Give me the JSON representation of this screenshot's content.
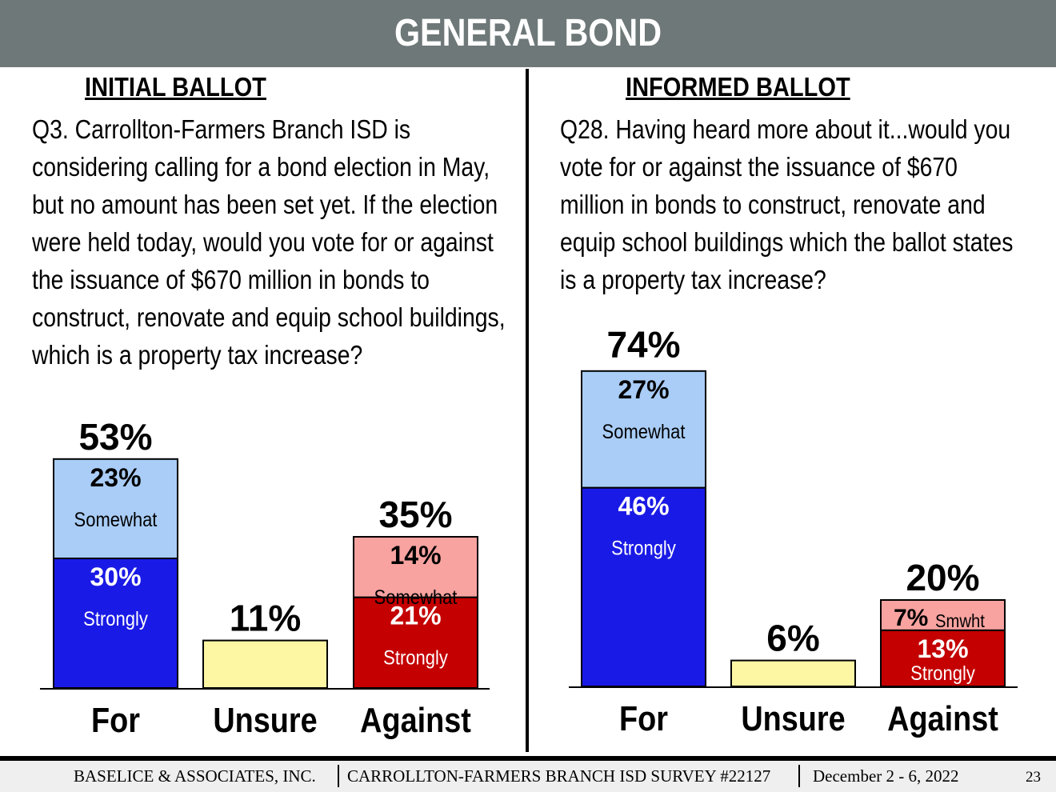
{
  "header": {
    "title": "GENERAL BOND"
  },
  "panels": [
    {
      "title": "INITIAL BALLOT",
      "question": "Q3. Carrollton-Farmers Branch ISD is considering calling for a bond election in May, but no amount has been set yet. If the election were held today, would you vote for or against the issuance of $670 million in bonds to construct, renovate and equip school buildings, which is a property tax increase?"
    },
    {
      "title": "INFORMED BALLOT",
      "question": "Q28. Having heard more about it...would you vote for or against the issuance of $670 million in bonds to construct, renovate and equip school buildings which the ballot states is a property tax increase?"
    }
  ],
  "chart_data": [
    {
      "type": "bar",
      "stacked": true,
      "categories": [
        "For",
        "Unsure",
        "Against"
      ],
      "totals": [
        "53%",
        "11%",
        "35%"
      ],
      "total_values": [
        53,
        11,
        35
      ],
      "segments": [
        {
          "category": "For",
          "label": "Strongly",
          "value": 30,
          "value_label": "30%",
          "color": "#1a1ae6",
          "text_color": "#ffffff"
        },
        {
          "category": "For",
          "label": "Somewhat",
          "value": 23,
          "value_label": "23%",
          "color": "#a9cdf7",
          "text_color": "#000000"
        },
        {
          "category": "Unsure",
          "label": "",
          "value": 11,
          "value_label": "",
          "color": "#fdf7a4",
          "text_color": "#000000"
        },
        {
          "category": "Against",
          "label": "Strongly",
          "value": 21,
          "value_label": "21%",
          "color": "#c40000",
          "text_color": "#ffffff"
        },
        {
          "category": "Against",
          "label": "Somewhat",
          "value": 14,
          "value_label": "14%",
          "color": "#f8a3a0",
          "text_color": "#000000"
        }
      ],
      "grid": false
    },
    {
      "type": "bar",
      "stacked": true,
      "categories": [
        "For",
        "Unsure",
        "Against"
      ],
      "totals": [
        "74%",
        "6%",
        "20%"
      ],
      "total_values": [
        74,
        6,
        20
      ],
      "segments": [
        {
          "category": "For",
          "label": "Strongly",
          "value": 46,
          "value_label": "46%",
          "color": "#1a1ae6",
          "text_color": "#ffffff"
        },
        {
          "category": "For",
          "label": "Somewhat",
          "value": 27,
          "value_label": "27%",
          "color": "#a9cdf7",
          "text_color": "#000000"
        },
        {
          "category": "Unsure",
          "label": "",
          "value": 6,
          "value_label": "",
          "color": "#fdf7a4",
          "text_color": "#000000"
        },
        {
          "category": "Against",
          "label": "Strongly",
          "value": 13,
          "value_label": "13%",
          "color": "#c40000",
          "text_color": "#ffffff"
        },
        {
          "category": "Against",
          "label": "Smwht",
          "value": 7,
          "value_label": "7%",
          "color": "#f8a3a0",
          "text_color": "#000000"
        }
      ],
      "grid": false
    }
  ],
  "footer": {
    "company": "BASELICE & ASSOCIATES, INC.",
    "survey": "CARROLLTON-FARMERS BRANCH ISD SURVEY  #22127",
    "dates": "December 2 - 6, 2022",
    "page": "23"
  }
}
